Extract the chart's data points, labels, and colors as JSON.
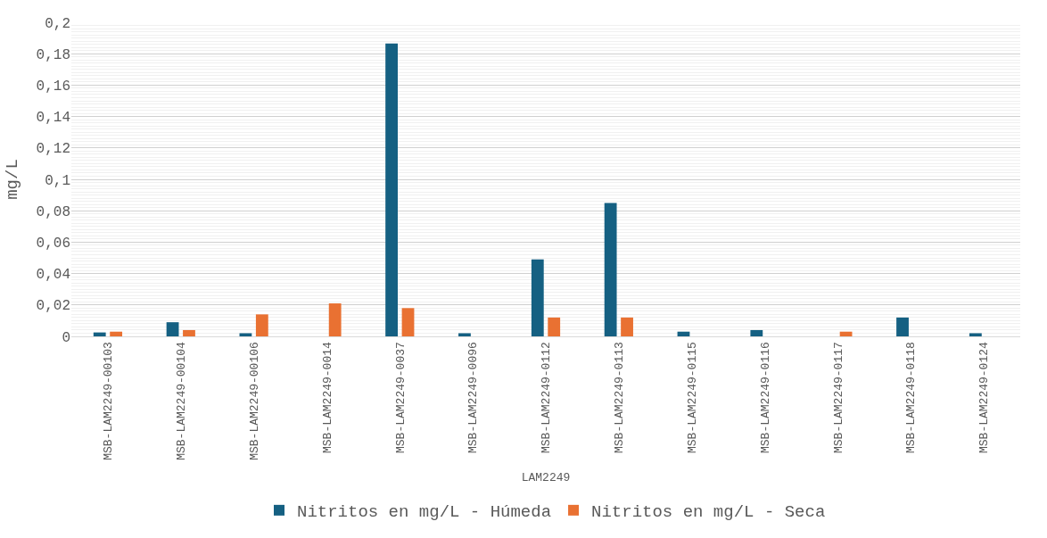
{
  "chart_data": {
    "type": "bar",
    "xlabel": "LAM2249",
    "ylabel": "mg/L",
    "categories": [
      "MSB-LAM2249-00103",
      "MSB-LAM2249-00104",
      "MSB-LAM2249-00106",
      "MSB-LAM2249-0014",
      "MSB-LAM2249-0037",
      "MSB-LAM2249-0096",
      "MSB-LAM2249-0112",
      "MSB-LAM2249-0113",
      "MSB-LAM2249-0115",
      "MSB-LAM2249-0116",
      "MSB-LAM2249-0117",
      "MSB-LAM2249-0118",
      "MSB-LAM2249-0124"
    ],
    "series": [
      {
        "name": "Nitritos en mg/L - Húmeda",
        "color": "#156082",
        "values": [
          0.0025,
          0.009,
          0.002,
          null,
          0.1865,
          0.002,
          0.049,
          0.085,
          0.003,
          0.004,
          null,
          0.012,
          0.002
        ]
      },
      {
        "name": "Nitritos en mg/L - Seca",
        "color": "#e97132",
        "values": [
          0.003,
          0.004,
          0.014,
          0.021,
          0.018,
          null,
          0.012,
          0.012,
          null,
          null,
          0.003,
          null,
          null
        ]
      }
    ],
    "ylim": [
      0,
      0.2
    ],
    "yticks": [
      0,
      {
        "value": 0.02,
        "label": "0,02"
      },
      {
        "value": 0.04,
        "label": "0,04"
      },
      {
        "value": 0.06,
        "label": "0,06"
      },
      {
        "value": 0.08,
        "label": "0,08"
      },
      {
        "value": 0.1,
        "label": "0,1"
      },
      {
        "value": 0.12,
        "label": "0,12"
      },
      {
        "value": 0.14,
        "label": "0,14"
      },
      {
        "value": 0.16,
        "label": "0,16"
      },
      {
        "value": 0.18,
        "label": "0,18"
      },
      {
        "value": 0.2,
        "label": "0,2"
      }
    ],
    "grid": "y",
    "legend": "bottom"
  }
}
